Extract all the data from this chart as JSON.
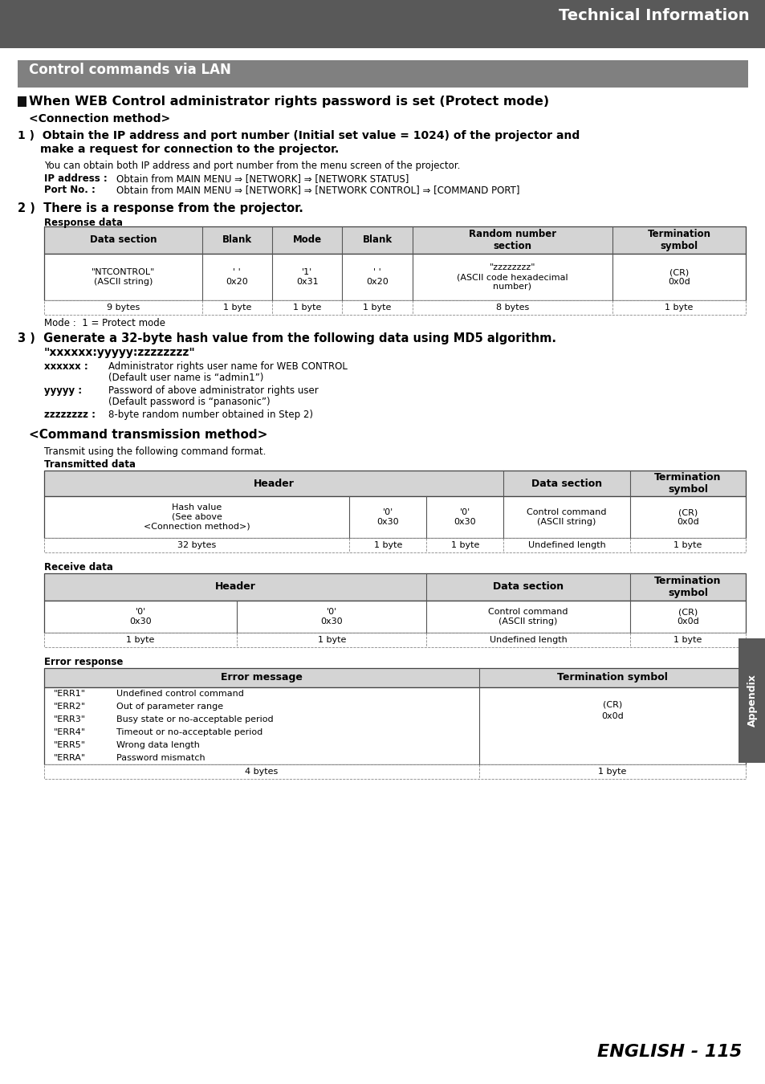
{
  "page_bg": "#ffffff",
  "header_bg": "#595959",
  "header_text": "Technical Information",
  "header_text_color": "#ffffff",
  "section_bg": "#808080",
  "section_text": "Control commands via LAN",
  "section_text_color": "#ffffff",
  "appendix_bg": "#595959",
  "appendix_text": "Appendix",
  "appendix_text_color": "#ffffff",
  "footer_text": "ENGLISH - 115"
}
